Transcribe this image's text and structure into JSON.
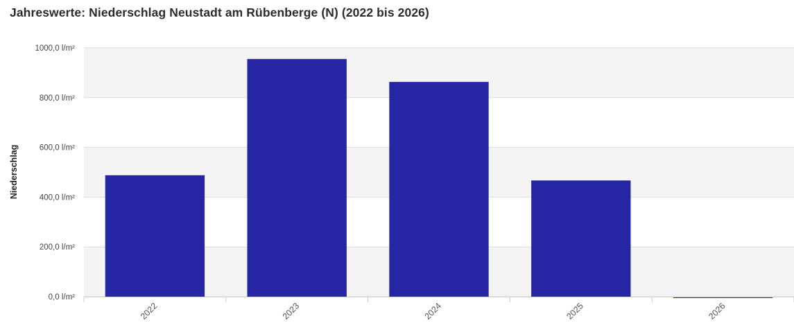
{
  "chart_data": {
    "type": "bar",
    "title": "Jahreswerte: Niederschlag Neustadt am Rübenberge (N) (2022 bis 2026)",
    "ylabel": "Niederschlag",
    "xlabel": "",
    "categories": [
      "2022",
      "2023",
      "2024",
      "2025",
      "2026"
    ],
    "values": [
      488.0,
      955.0,
      863.0,
      467.0,
      -5.0
    ],
    "ylim": [
      0,
      1000
    ],
    "yticks": [
      0,
      200,
      400,
      600,
      800,
      1000
    ],
    "ytick_labels": [
      "0,0 l/m²",
      "200,0 l/m²",
      "400,0 l/m²",
      "600,0 l/m²",
      "800,0 l/m²",
      "1000,0 l/m²"
    ],
    "grid": true,
    "band_fill": "#f4f4f4",
    "bar_color": "#1a1aa0",
    "legend": "none"
  }
}
